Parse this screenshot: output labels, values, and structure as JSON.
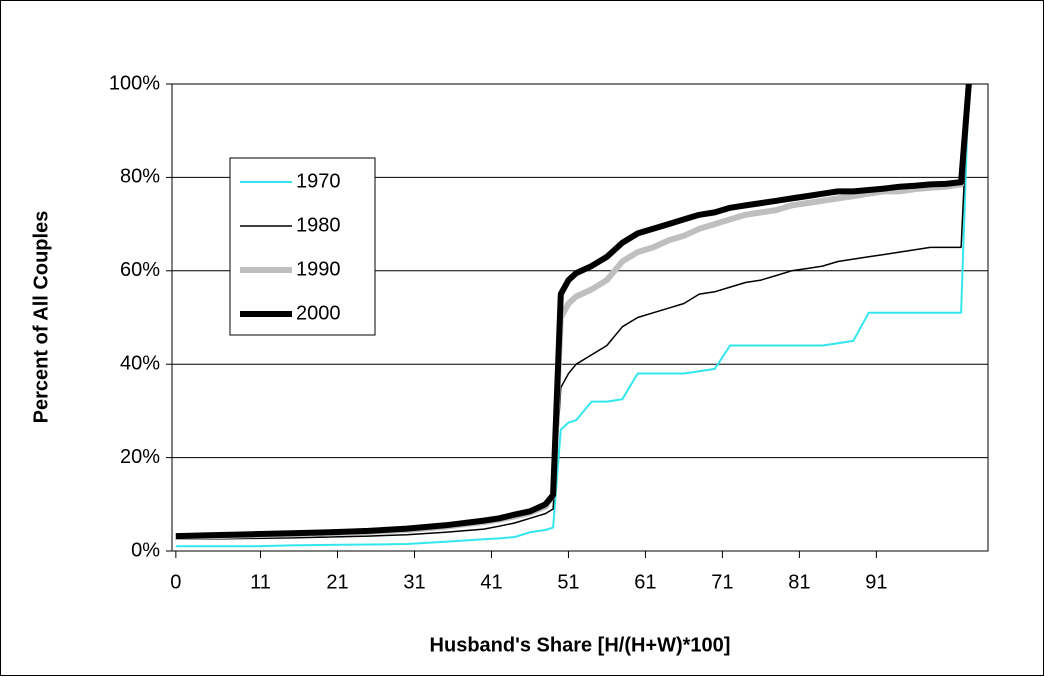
{
  "chart_data": {
    "type": "line",
    "x_label": "Husband's Share [H/(H+W)*100]",
    "y_label": "Percent of All Couples",
    "x": [
      0,
      5,
      10,
      15,
      20,
      25,
      30,
      35,
      40,
      42,
      44,
      46,
      48,
      49,
      50,
      51,
      52,
      54,
      56,
      58,
      60,
      62,
      64,
      66,
      68,
      70,
      72,
      74,
      76,
      78,
      80,
      82,
      84,
      86,
      88,
      90,
      92,
      94,
      96,
      98,
      100,
      102,
      103
    ],
    "series": [
      {
        "name": "1970",
        "color": "#33e6ee",
        "width": 2,
        "values": [
          1,
          1,
          1,
          1.2,
          1.3,
          1.4,
          1.5,
          2,
          2.5,
          2.7,
          3,
          4,
          4.5,
          5,
          26,
          27.5,
          28,
          32,
          32,
          32.5,
          38,
          38,
          38,
          38,
          38.5,
          39,
          44,
          44,
          44,
          44,
          44,
          44,
          44,
          44.5,
          45,
          51,
          51,
          51,
          51,
          51,
          51,
          51,
          100
        ]
      },
      {
        "name": "1980",
        "color": "#000000",
        "width": 1.5,
        "values": [
          2.5,
          2.6,
          2.7,
          2.8,
          3,
          3.2,
          3.5,
          4,
          4.7,
          5.3,
          6,
          7,
          8,
          9,
          35,
          38,
          40,
          42,
          44,
          48,
          50,
          51,
          52,
          53,
          55,
          55.5,
          56.5,
          57.5,
          58,
          59,
          60,
          60.5,
          61,
          62,
          62.5,
          63,
          63.5,
          64,
          64.5,
          65,
          65,
          65,
          100
        ]
      },
      {
        "name": "1990",
        "color": "#bfbfbf",
        "width": 6,
        "values": [
          3,
          3.2,
          3.4,
          3.6,
          3.8,
          4.1,
          4.5,
          5.2,
          6.2,
          6.7,
          7.4,
          8.2,
          9.5,
          12,
          50,
          53,
          54.5,
          56,
          58,
          62,
          64,
          65,
          66.5,
          67.5,
          69,
          70,
          71,
          72,
          72.5,
          73,
          74,
          74.5,
          75,
          75.5,
          76,
          76.5,
          77,
          77,
          77.5,
          77.8,
          78,
          78.5,
          100
        ]
      },
      {
        "name": "2000",
        "color": "#000000",
        "width": 6,
        "values": [
          3.2,
          3.4,
          3.6,
          3.8,
          4,
          4.3,
          4.8,
          5.5,
          6.5,
          7,
          7.8,
          8.5,
          10,
          12,
          55,
          58,
          59.5,
          61,
          63,
          66,
          68,
          69,
          70,
          71,
          72,
          72.5,
          73.5,
          74,
          74.5,
          75,
          75.5,
          76,
          76.5,
          77,
          77,
          77.3,
          77.6,
          78,
          78.2,
          78.5,
          78.6,
          79,
          100
        ]
      }
    ],
    "xlim": [
      -0.5,
      105.5
    ],
    "xticks": [
      0,
      11,
      21,
      31,
      41,
      51,
      61,
      71,
      81,
      91
    ],
    "ylim": [
      0,
      100
    ],
    "yticks": [
      {
        "value": 0,
        "label": "0%"
      },
      {
        "value": 20,
        "label": "20%"
      },
      {
        "value": 40,
        "label": "40%"
      },
      {
        "value": 60,
        "label": "60%"
      },
      {
        "value": 80,
        "label": "80%"
      },
      {
        "value": 100,
        "label": "100%"
      }
    ],
    "grid": true,
    "legend": "upper left"
  }
}
